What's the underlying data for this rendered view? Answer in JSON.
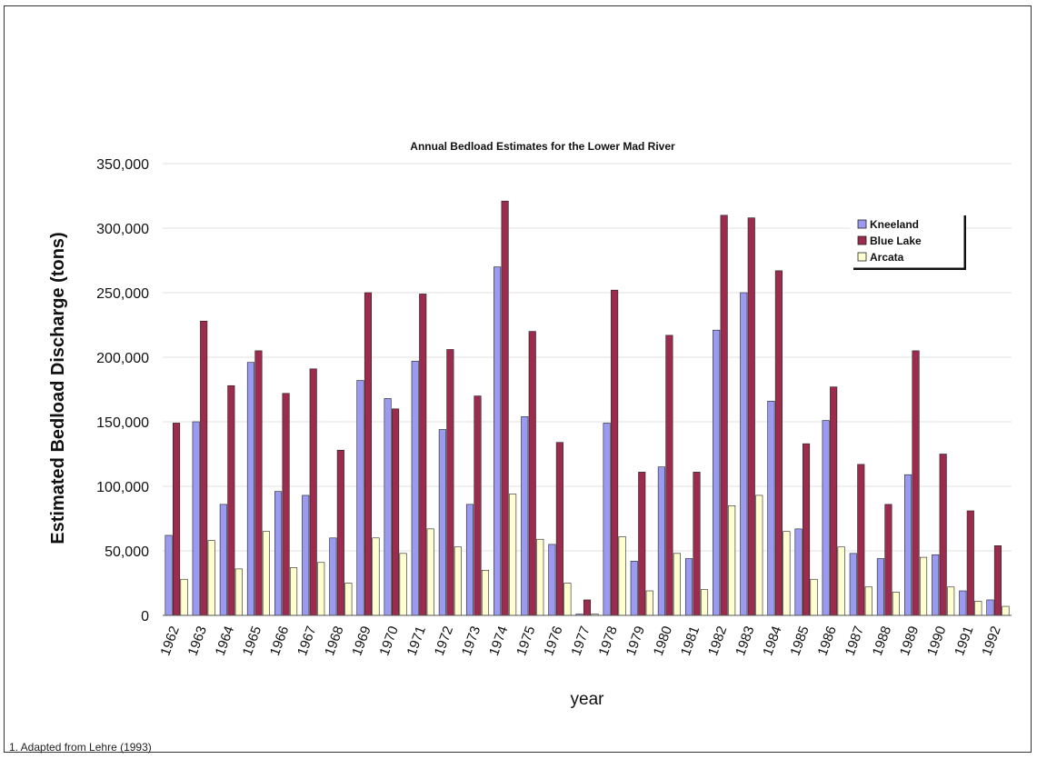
{
  "chart_data": {
    "type": "bar",
    "title": "Annual Bedload Estimates for the Lower Mad River",
    "xlabel": "year",
    "ylabel": "Estimated Bedload Discharge (tons)",
    "ylim": [
      0,
      350000
    ],
    "yticks": [
      0,
      50000,
      100000,
      150000,
      200000,
      250000,
      300000,
      350000
    ],
    "ytick_labels": [
      "0",
      "50,000",
      "100,000",
      "150,000",
      "200,000",
      "250,000",
      "300,000",
      "350,000"
    ],
    "grid": true,
    "legend_position": "top-right",
    "categories": [
      "1962",
      "1963",
      "1964",
      "1965",
      "1966",
      "1967",
      "1968",
      "1969",
      "1970",
      "1971",
      "1972",
      "1973",
      "1974",
      "1975",
      "1976",
      "1977",
      "1978",
      "1979",
      "1980",
      "1981",
      "1982",
      "1983",
      "1984",
      "1985",
      "1986",
      "1987",
      "1988",
      "1989",
      "1990",
      "1991",
      "1992"
    ],
    "series": [
      {
        "name": "Kneeland",
        "color": "#9a9af0",
        "values": [
          62000,
          150000,
          86000,
          196000,
          96000,
          93000,
          60000,
          182000,
          168000,
          197000,
          144000,
          86000,
          270000,
          154000,
          55000,
          1000,
          149000,
          42000,
          115000,
          44000,
          221000,
          250000,
          166000,
          67000,
          151000,
          48000,
          44000,
          109000,
          47000,
          19000,
          12000
        ]
      },
      {
        "name": "Blue Lake",
        "color": "#9b2c4d",
        "values": [
          149000,
          228000,
          178000,
          205000,
          172000,
          191000,
          128000,
          250000,
          160000,
          249000,
          206000,
          170000,
          321000,
          220000,
          134000,
          12000,
          252000,
          111000,
          217000,
          111000,
          310000,
          308000,
          267000,
          133000,
          177000,
          117000,
          86000,
          205000,
          125000,
          81000,
          54000
        ]
      },
      {
        "name": "Arcata",
        "color": "#ffffd0",
        "values": [
          28000,
          58000,
          36000,
          65000,
          37000,
          41000,
          25000,
          60000,
          48000,
          67000,
          53000,
          35000,
          94000,
          59000,
          25000,
          1000,
          61000,
          19000,
          48000,
          20000,
          85000,
          93000,
          65000,
          28000,
          53000,
          22000,
          18000,
          45000,
          22000,
          11000,
          7000
        ]
      }
    ]
  },
  "footnote": "1. Adapted from Lehre (1993)"
}
